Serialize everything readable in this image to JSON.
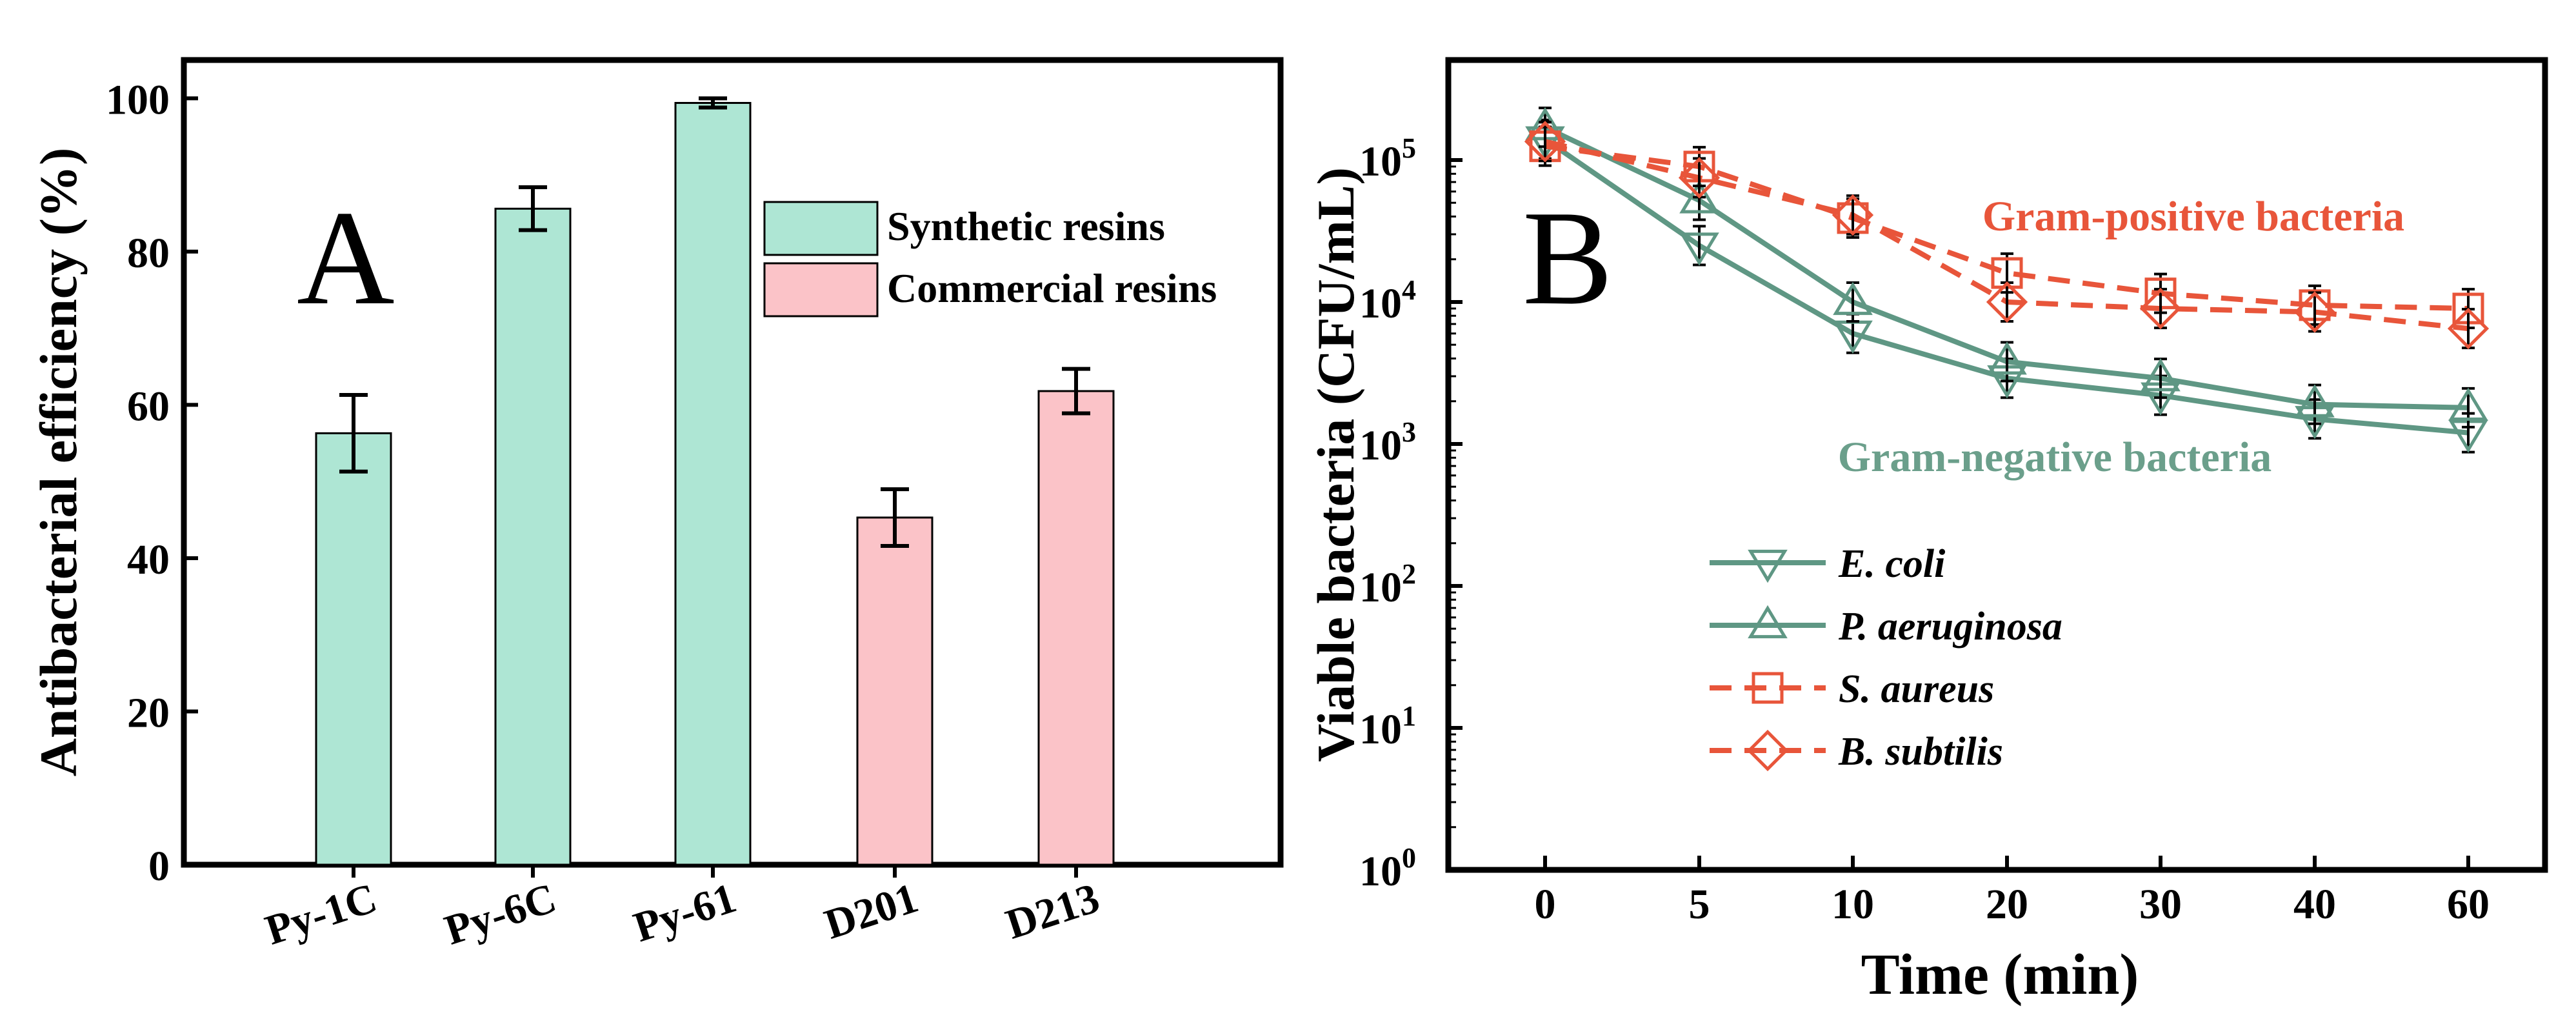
{
  "chart_data": [
    {
      "type": "bar",
      "panel_label": "A",
      "ylabel": "Antibacterial efficiency (%)",
      "xlabel": "",
      "ylim": [
        0,
        105
      ],
      "yticks": [
        "0",
        "20",
        "40",
        "60",
        "80",
        "100"
      ],
      "categories": [
        "Py-1C",
        "Py-6C",
        "Py-61",
        "D201",
        "D213"
      ],
      "values": [
        56.3,
        85.6,
        99.4,
        45.3,
        61.8
      ],
      "errors": [
        5.0,
        2.8,
        0.6,
        3.7,
        2.9
      ],
      "groups": [
        "Synthetic resins",
        "Synthetic resins",
        "Synthetic resins",
        "Commercial resins",
        "Commercial resins"
      ],
      "legend": [
        {
          "label": "Synthetic resins",
          "color": "#aee6d4"
        },
        {
          "label": "Commercial resins",
          "color": "#fbc3c8"
        }
      ]
    },
    {
      "type": "line",
      "panel_label": "B",
      "xlabel": "Time (min)",
      "ylabel": "Viable bacteria (CFU/mL)",
      "yscale": "log",
      "ylim": [
        1,
        400000
      ],
      "ytick_bases": [
        "10",
        "10",
        "10",
        "10",
        "10",
        "10"
      ],
      "ytick_exponents": [
        "0",
        "1",
        "2",
        "3",
        "4",
        "5"
      ],
      "categories": [
        "0",
        "5",
        "10",
        "20",
        "30",
        "40",
        "60"
      ],
      "annotations": [
        {
          "text": "Gram-positive bacteria",
          "color": "#e8553a"
        },
        {
          "text": "Gram-negative bacteria",
          "color": "#6b9f8b"
        }
      ],
      "series": [
        {
          "name": "E. coli",
          "marker": "triangle-down",
          "style": "solid",
          "color": "#5f9784",
          "values": [
            140000,
            25000,
            6000,
            2900,
            2200,
            1500,
            1200
          ]
        },
        {
          "name": "P. aeruginosa",
          "marker": "triangle-up",
          "style": "solid",
          "color": "#5f9784",
          "values": [
            170000,
            52000,
            10000,
            3800,
            2900,
            1900,
            1800
          ]
        },
        {
          "name": "S. aureus",
          "marker": "square",
          "style": "dashed",
          "color": "#e8553a",
          "values": [
            125000,
            90000,
            39000,
            16000,
            11500,
            9500,
            9000
          ]
        },
        {
          "name": "B. subtilis",
          "marker": "diamond",
          "style": "dashed",
          "color": "#e8553a",
          "values": [
            135000,
            75000,
            41000,
            10000,
            9000,
            8500,
            6500
          ]
        }
      ]
    }
  ]
}
